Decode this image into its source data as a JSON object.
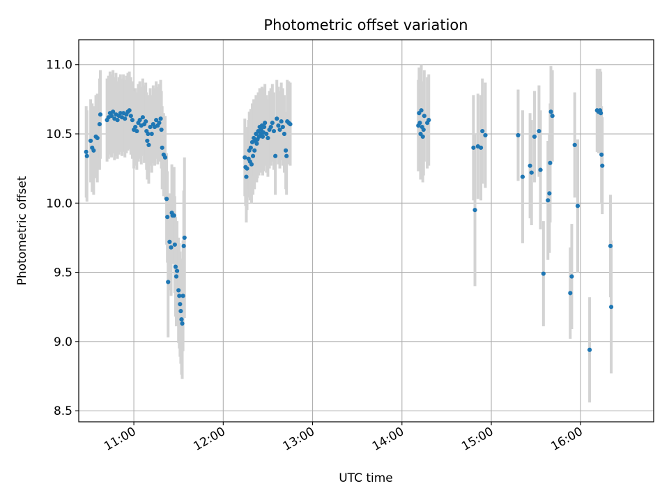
{
  "chart_data": {
    "type": "scatter",
    "title": "Photometric offset variation",
    "xlabel": "UTC time",
    "ylabel": "Photometric offset",
    "x_unit": "UTC time (HH:MM)",
    "xlim": [
      "10:23",
      "16:49"
    ],
    "ylim": [
      8.42,
      11.18
    ],
    "xticks": [
      "11:00",
      "12:00",
      "13:00",
      "14:00",
      "15:00",
      "16:00"
    ],
    "yticks": [
      "8.5",
      "9.0",
      "9.5",
      "10.0",
      "10.5",
      "11.0"
    ],
    "grid": true,
    "colors": {
      "point": "#1f77b4",
      "errorbar": "#d3d3d3",
      "grid": "#b0b0b0"
    },
    "series": [
      {
        "marker": "point",
        "errorbars": "vertical",
        "points": [
          {
            "x": "10:28:00",
            "y": 10.37,
            "err": 0.33
          },
          {
            "x": "10:28:30",
            "y": 10.34,
            "err": 0.33
          },
          {
            "x": "10:31:00",
            "y": 10.45,
            "err": 0.3
          },
          {
            "x": "10:32:00",
            "y": 10.4,
            "err": 0.32
          },
          {
            "x": "10:33:00",
            "y": 10.38,
            "err": 0.32
          },
          {
            "x": "10:34:30",
            "y": 10.48,
            "err": 0.3
          },
          {
            "x": "10:35:30",
            "y": 10.47,
            "err": 0.32
          },
          {
            "x": "10:37:00",
            "y": 10.57,
            "err": 0.33
          },
          {
            "x": "10:37:30",
            "y": 10.64,
            "err": 0.32
          },
          {
            "x": "10:42:00",
            "y": 10.6,
            "err": 0.3
          },
          {
            "x": "10:43:00",
            "y": 10.62,
            "err": 0.3
          },
          {
            "x": "10:44:00",
            "y": 10.65,
            "err": 0.3
          },
          {
            "x": "10:45:00",
            "y": 10.63,
            "err": 0.3
          },
          {
            "x": "10:46:00",
            "y": 10.66,
            "err": 0.3
          },
          {
            "x": "10:47:00",
            "y": 10.61,
            "err": 0.3
          },
          {
            "x": "10:48:00",
            "y": 10.64,
            "err": 0.3
          },
          {
            "x": "10:49:00",
            "y": 10.6,
            "err": 0.28
          },
          {
            "x": "10:50:00",
            "y": 10.63,
            "err": 0.28
          },
          {
            "x": "10:51:00",
            "y": 10.65,
            "err": 0.28
          },
          {
            "x": "10:52:00",
            "y": 10.62,
            "err": 0.28
          },
          {
            "x": "10:53:00",
            "y": 10.65,
            "err": 0.28
          },
          {
            "x": "10:54:00",
            "y": 10.61,
            "err": 0.28
          },
          {
            "x": "10:55:00",
            "y": 10.64,
            "err": 0.28
          },
          {
            "x": "10:56:00",
            "y": 10.66,
            "err": 0.28
          },
          {
            "x": "10:57:00",
            "y": 10.67,
            "err": 0.28
          },
          {
            "x": "10:58:00",
            "y": 10.63,
            "err": 0.28
          },
          {
            "x": "10:59:00",
            "y": 10.6,
            "err": 0.28
          },
          {
            "x": "11:00:00",
            "y": 10.53,
            "err": 0.28
          },
          {
            "x": "11:01:00",
            "y": 10.55,
            "err": 0.28
          },
          {
            "x": "11:02:00",
            "y": 10.52,
            "err": 0.28
          },
          {
            "x": "11:03:00",
            "y": 10.58,
            "err": 0.28
          },
          {
            "x": "11:04:00",
            "y": 10.6,
            "err": 0.28
          },
          {
            "x": "11:05:00",
            "y": 10.56,
            "err": 0.28
          },
          {
            "x": "11:06:00",
            "y": 10.62,
            "err": 0.28
          },
          {
            "x": "11:07:00",
            "y": 10.57,
            "err": 0.28
          },
          {
            "x": "11:08:00",
            "y": 10.59,
            "err": 0.28
          },
          {
            "x": "11:08:30",
            "y": 10.52,
            "err": 0.28
          },
          {
            "x": "11:09:00",
            "y": 10.45,
            "err": 0.28
          },
          {
            "x": "11:09:30",
            "y": 10.5,
            "err": 0.28
          },
          {
            "x": "11:10:00",
            "y": 10.42,
            "err": 0.28
          },
          {
            "x": "11:11:00",
            "y": 10.55,
            "err": 0.28
          },
          {
            "x": "11:12:00",
            "y": 10.5,
            "err": 0.28
          },
          {
            "x": "11:13:00",
            "y": 10.57,
            "err": 0.28
          },
          {
            "x": "11:14:00",
            "y": 10.55,
            "err": 0.28
          },
          {
            "x": "11:15:00",
            "y": 10.6,
            "err": 0.28
          },
          {
            "x": "11:16:00",
            "y": 10.56,
            "err": 0.28
          },
          {
            "x": "11:17:00",
            "y": 10.58,
            "err": 0.28
          },
          {
            "x": "11:18:00",
            "y": 10.61,
            "err": 0.28
          },
          {
            "x": "11:18:30",
            "y": 10.53,
            "err": 0.28
          },
          {
            "x": "11:19:00",
            "y": 10.4,
            "err": 0.3
          },
          {
            "x": "11:20:00",
            "y": 10.35,
            "err": 0.3
          },
          {
            "x": "11:21:00",
            "y": 10.33,
            "err": 0.3
          },
          {
            "x": "11:22:00",
            "y": 10.03,
            "err": 0.33
          },
          {
            "x": "11:22:30",
            "y": 9.9,
            "err": 0.33
          },
          {
            "x": "11:23:00",
            "y": 9.43,
            "err": 0.4
          },
          {
            "x": "11:24:00",
            "y": 9.72,
            "err": 0.35
          },
          {
            "x": "11:25:00",
            "y": 9.68,
            "err": 0.35
          },
          {
            "x": "11:25:30",
            "y": 9.93,
            "err": 0.35
          },
          {
            "x": "11:26:00",
            "y": 9.91,
            "err": 0.35
          },
          {
            "x": "11:27:00",
            "y": 9.91,
            "err": 0.35
          },
          {
            "x": "11:27:30",
            "y": 9.7,
            "err": 0.35
          },
          {
            "x": "11:28:00",
            "y": 9.54,
            "err": 0.36
          },
          {
            "x": "11:28:30",
            "y": 9.47,
            "err": 0.36
          },
          {
            "x": "11:29:00",
            "y": 9.51,
            "err": 0.36
          },
          {
            "x": "11:30:00",
            "y": 9.37,
            "err": 0.38
          },
          {
            "x": "11:30:30",
            "y": 9.33,
            "err": 0.38
          },
          {
            "x": "11:31:00",
            "y": 9.27,
            "err": 0.38
          },
          {
            "x": "11:31:30",
            "y": 9.22,
            "err": 0.38
          },
          {
            "x": "11:32:00",
            "y": 9.16,
            "err": 0.4
          },
          {
            "x": "11:32:30",
            "y": 9.13,
            "err": 0.4
          },
          {
            "x": "11:33:00",
            "y": 9.33,
            "err": 0.4
          },
          {
            "x": "11:33:30",
            "y": 9.69,
            "err": 0.4
          },
          {
            "x": "11:34:00",
            "y": 9.75,
            "err": 0.58
          },
          {
            "x": "12:14:30",
            "y": 10.33,
            "err": 0.28
          },
          {
            "x": "12:15:00",
            "y": 10.26,
            "err": 0.28
          },
          {
            "x": "12:15:30",
            "y": 10.19,
            "err": 0.33
          },
          {
            "x": "12:16:00",
            "y": 10.25,
            "err": 0.3
          },
          {
            "x": "12:17:00",
            "y": 10.32,
            "err": 0.28
          },
          {
            "x": "12:17:30",
            "y": 10.38,
            "err": 0.28
          },
          {
            "x": "12:18:00",
            "y": 10.3,
            "err": 0.28
          },
          {
            "x": "12:18:30",
            "y": 10.4,
            "err": 0.28
          },
          {
            "x": "12:19:00",
            "y": 10.28,
            "err": 0.28
          },
          {
            "x": "12:19:30",
            "y": 10.44,
            "err": 0.28
          },
          {
            "x": "12:20:00",
            "y": 10.34,
            "err": 0.28
          },
          {
            "x": "12:20:30",
            "y": 10.47,
            "err": 0.28
          },
          {
            "x": "12:21:00",
            "y": 10.38,
            "err": 0.28
          },
          {
            "x": "12:21:30",
            "y": 10.45,
            "err": 0.28
          },
          {
            "x": "12:22:00",
            "y": 10.5,
            "err": 0.28
          },
          {
            "x": "12:22:30",
            "y": 10.43,
            "err": 0.28
          },
          {
            "x": "12:23:00",
            "y": 10.46,
            "err": 0.28
          },
          {
            "x": "12:23:30",
            "y": 10.52,
            "err": 0.28
          },
          {
            "x": "12:24:00",
            "y": 10.48,
            "err": 0.28
          },
          {
            "x": "12:24:30",
            "y": 10.55,
            "err": 0.28
          },
          {
            "x": "12:25:00",
            "y": 10.5,
            "err": 0.28
          },
          {
            "x": "12:25:30",
            "y": 10.53,
            "err": 0.28
          },
          {
            "x": "12:26:00",
            "y": 10.56,
            "err": 0.28
          },
          {
            "x": "12:26:30",
            "y": 10.48,
            "err": 0.28
          },
          {
            "x": "12:27:00",
            "y": 10.51,
            "err": 0.28
          },
          {
            "x": "12:27:30",
            "y": 10.55,
            "err": 0.28
          },
          {
            "x": "12:28:00",
            "y": 10.58,
            "err": 0.28
          },
          {
            "x": "12:29:00",
            "y": 10.5,
            "err": 0.28
          },
          {
            "x": "12:30:00",
            "y": 10.47,
            "err": 0.28
          },
          {
            "x": "12:31:00",
            "y": 10.53,
            "err": 0.28
          },
          {
            "x": "12:32:00",
            "y": 10.55,
            "err": 0.28
          },
          {
            "x": "12:33:00",
            "y": 10.58,
            "err": 0.28
          },
          {
            "x": "12:34:00",
            "y": 10.52,
            "err": 0.28
          },
          {
            "x": "12:35:00",
            "y": 10.34,
            "err": 0.28
          },
          {
            "x": "12:36:00",
            "y": 10.61,
            "err": 0.28
          },
          {
            "x": "12:37:00",
            "y": 10.56,
            "err": 0.28
          },
          {
            "x": "12:38:00",
            "y": 10.53,
            "err": 0.28
          },
          {
            "x": "12:39:00",
            "y": 10.59,
            "err": 0.28
          },
          {
            "x": "12:40:00",
            "y": 10.55,
            "err": 0.28
          },
          {
            "x": "12:41:00",
            "y": 10.5,
            "err": 0.28
          },
          {
            "x": "12:42:00",
            "y": 10.38,
            "err": 0.28
          },
          {
            "x": "12:42:30",
            "y": 10.34,
            "err": 0.28
          },
          {
            "x": "12:43:00",
            "y": 10.59,
            "err": 0.3
          },
          {
            "x": "12:44:00",
            "y": 10.58,
            "err": 0.3
          },
          {
            "x": "12:45:00",
            "y": 10.57,
            "err": 0.3
          },
          {
            "x": "14:11:00",
            "y": 10.56,
            "err": 0.33
          },
          {
            "x": "14:11:30",
            "y": 10.65,
            "err": 0.33
          },
          {
            "x": "14:12:00",
            "y": 10.58,
            "err": 0.33
          },
          {
            "x": "14:12:30",
            "y": 10.5,
            "err": 0.33
          },
          {
            "x": "14:13:00",
            "y": 10.67,
            "err": 0.33
          },
          {
            "x": "14:13:30",
            "y": 10.55,
            "err": 0.33
          },
          {
            "x": "14:14:00",
            "y": 10.48,
            "err": 0.33
          },
          {
            "x": "14:14:30",
            "y": 10.53,
            "err": 0.33
          },
          {
            "x": "14:15:00",
            "y": 10.63,
            "err": 0.33
          },
          {
            "x": "14:17:00",
            "y": 10.58,
            "err": 0.33
          },
          {
            "x": "14:18:00",
            "y": 10.6,
            "err": 0.33
          },
          {
            "x": "14:48:00",
            "y": 10.4,
            "err": 0.38
          },
          {
            "x": "14:49:00",
            "y": 9.95,
            "err": 0.55
          },
          {
            "x": "14:51:00",
            "y": 10.41,
            "err": 0.38
          },
          {
            "x": "14:53:00",
            "y": 10.4,
            "err": 0.38
          },
          {
            "x": "14:54:00",
            "y": 10.52,
            "err": 0.38
          },
          {
            "x": "14:56:00",
            "y": 10.49,
            "err": 0.38
          },
          {
            "x": "15:18:00",
            "y": 10.49,
            "err": 0.33
          },
          {
            "x": "15:21:00",
            "y": 10.19,
            "err": 0.48
          },
          {
            "x": "15:26:00",
            "y": 10.27,
            "err": 0.38
          },
          {
            "x": "15:27:00",
            "y": 10.22,
            "err": 0.38
          },
          {
            "x": "15:29:00",
            "y": 10.48,
            "err": 0.33
          },
          {
            "x": "15:32:00",
            "y": 10.52,
            "err": 0.33
          },
          {
            "x": "15:33:00",
            "y": 10.24,
            "err": 0.43
          },
          {
            "x": "15:35:00",
            "y": 9.49,
            "err": 0.38
          },
          {
            "x": "15:38:00",
            "y": 10.02,
            "err": 0.43
          },
          {
            "x": "15:39:00",
            "y": 10.07,
            "err": 0.43
          },
          {
            "x": "15:39:30",
            "y": 10.29,
            "err": 0.43
          },
          {
            "x": "15:40:00",
            "y": 10.66,
            "err": 0.33
          },
          {
            "x": "15:41:00",
            "y": 10.63,
            "err": 0.33
          },
          {
            "x": "15:53:00",
            "y": 9.35,
            "err": 0.33
          },
          {
            "x": "15:54:00",
            "y": 9.47,
            "err": 0.38
          },
          {
            "x": "15:56:00",
            "y": 10.42,
            "err": 0.38
          },
          {
            "x": "15:58:00",
            "y": 9.98,
            "err": 0.48
          },
          {
            "x": "16:06:00",
            "y": 8.94,
            "err": 0.38
          },
          {
            "x": "16:11:00",
            "y": 10.67,
            "err": 0.3
          },
          {
            "x": "16:12:00",
            "y": 10.66,
            "err": 0.3
          },
          {
            "x": "16:13:00",
            "y": 10.67,
            "err": 0.3
          },
          {
            "x": "16:13:30",
            "y": 10.65,
            "err": 0.3
          },
          {
            "x": "16:14:00",
            "y": 10.35,
            "err": 0.35
          },
          {
            "x": "16:14:30",
            "y": 10.27,
            "err": 0.35
          },
          {
            "x": "16:20:00",
            "y": 9.69,
            "err": 0.37
          },
          {
            "x": "16:20:30",
            "y": 9.25,
            "err": 0.48
          }
        ]
      }
    ]
  }
}
